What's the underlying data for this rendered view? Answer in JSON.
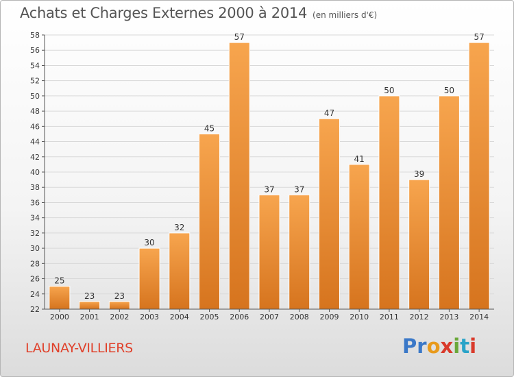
{
  "title": "Achats et Charges Externes 2000 à 2014",
  "unit": "(en milliers d'€)",
  "commune": "LAUNAY-VILLIERS",
  "logo": {
    "letters": [
      "P",
      "r",
      "o",
      "x",
      "i",
      "t",
      "i"
    ],
    "colors": [
      "#3a78c8",
      "#3a78c8",
      "#e89a1c",
      "#d93a2b",
      "#6aa83a",
      "#2aa3c8",
      "#d93a2b"
    ]
  },
  "colors": {
    "bar_light": "#f7a54e",
    "bar_dark": "#d6741e",
    "grid": "#d9d9d9"
  },
  "chart_data": {
    "type": "bar",
    "categories": [
      "2000",
      "2001",
      "2002",
      "2003",
      "2004",
      "2005",
      "2006",
      "2007",
      "2008",
      "2009",
      "2010",
      "2011",
      "2012",
      "2013",
      "2014"
    ],
    "values": [
      25,
      23,
      23,
      30,
      32,
      45,
      57,
      37,
      37,
      47,
      41,
      50,
      39,
      50,
      57
    ],
    "ylim": [
      22,
      58
    ],
    "yticks": [
      22,
      24,
      26,
      28,
      30,
      32,
      34,
      36,
      38,
      40,
      42,
      44,
      46,
      48,
      50,
      52,
      54,
      56,
      58
    ],
    "grid": true
  }
}
